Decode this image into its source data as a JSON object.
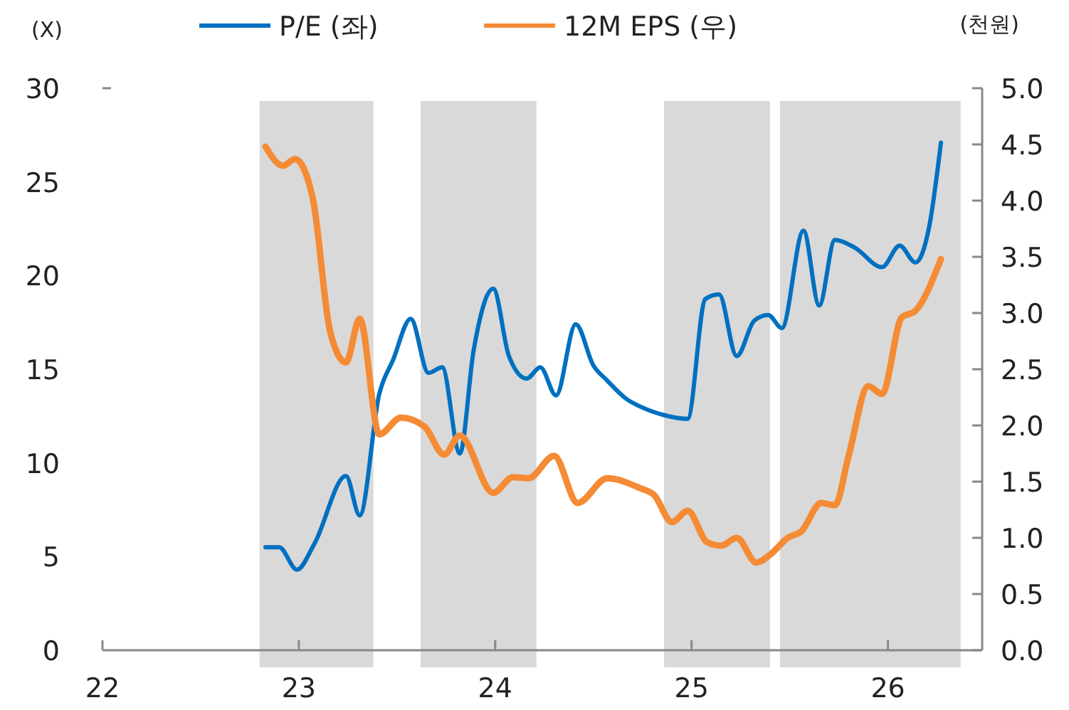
{
  "chart_data": {
    "type": "line",
    "ylabel": "(X)",
    "y2label": "(천원)",
    "xlim": [
      22,
      26.48
    ],
    "xticks": [
      22,
      23,
      24,
      25,
      26
    ],
    "ylim": [
      0,
      30
    ],
    "yticks": [
      0,
      5,
      10,
      15,
      20,
      25,
      30
    ],
    "y2lim": [
      0,
      5
    ],
    "y2ticks": [
      {
        "value": 0,
        "label": "0.0"
      },
      {
        "value": 0.5,
        "label": "0.5"
      },
      {
        "value": 1,
        "label": "1.0"
      },
      {
        "value": 1.5,
        "label": "1.5"
      },
      {
        "value": 2,
        "label": "2.0"
      },
      {
        "value": 2.5,
        "label": "2.5"
      },
      {
        "value": 3,
        "label": "3.0"
      },
      {
        "value": 3.5,
        "label": "3.5"
      },
      {
        "value": 4,
        "label": "4.0"
      },
      {
        "value": 4.5,
        "label": "4.5"
      },
      {
        "value": 5,
        "label": "5.0"
      }
    ],
    "legend": "top",
    "grid": false,
    "line_style": "solid",
    "bands": [
      {
        "axis": "x",
        "from": 22.8,
        "to": 23.38,
        "color": "#d9d9d9"
      },
      {
        "axis": "x",
        "from": 23.62,
        "to": 24.21,
        "color": "#d9d9d9"
      },
      {
        "axis": "x",
        "from": 24.86,
        "to": 25.4,
        "color": "#d9d9d9"
      },
      {
        "axis": "x",
        "from": 25.45,
        "to": 26.37,
        "color": "#d9d9d9"
      }
    ],
    "series": [
      {
        "name": "P/E (좌)",
        "color": "#0070c0",
        "x": [
          22.83,
          22.9,
          22.99,
          23.08,
          23.24,
          23.31,
          23.41,
          23.48,
          23.57,
          23.66,
          23.73,
          23.82,
          23.89,
          23.99,
          24.07,
          24.16,
          24.23,
          24.31,
          24.41,
          24.5,
          24.57,
          24.67,
          24.74,
          24.86,
          24.98,
          25.07,
          25.14,
          25.23,
          25.32,
          25.39,
          25.46,
          25.57,
          25.65,
          25.73,
          25.83,
          25.97,
          26.06,
          26.14,
          26.21,
          26.27
        ],
        "values": [
          5.5,
          5.5,
          4.3,
          5.7,
          9.3,
          7.2,
          13.7,
          15.5,
          17.7,
          14.8,
          15.1,
          10.5,
          16,
          19.3,
          15.7,
          14.5,
          15.1,
          13.6,
          17.4,
          15.2,
          14.4,
          13.4,
          13,
          12.55,
          12.35,
          18.75,
          19,
          15.7,
          17.6,
          17.9,
          17.2,
          22.4,
          18.4,
          21.9,
          21.5,
          20.45,
          21.6,
          20.7,
          22.6,
          27.1
        ]
      },
      {
        "name": "12M EPS (우)",
        "color": "#f58b34",
        "axis": "y2",
        "x": [
          22.83,
          22.92,
          22.98,
          23.07,
          23.16,
          23.24,
          23.31,
          23.41,
          23.52,
          23.64,
          23.74,
          23.82,
          23.99,
          24.09,
          24.17,
          24.3,
          24.42,
          24.57,
          24.74,
          24.81,
          24.9,
          24.98,
          25.08,
          25.15,
          25.23,
          25.33,
          25.4,
          25.49,
          25.56,
          25.66,
          25.73,
          25.8,
          25.9,
          25.97,
          26.07,
          26.14,
          26.27
        ],
        "values": [
          4.48,
          4.31,
          4.37,
          4.03,
          2.83,
          2.56,
          2.95,
          1.92,
          2.07,
          1.99,
          1.74,
          1.91,
          1.4,
          1.54,
          1.53,
          1.73,
          1.31,
          1.53,
          1.44,
          1.38,
          1.14,
          1.24,
          0.96,
          0.93,
          1,
          0.78,
          0.85,
          1,
          1.06,
          1.31,
          1.29,
          1.73,
          2.35,
          2.28,
          2.96,
          3.02,
          3.48
        ]
      }
    ]
  }
}
